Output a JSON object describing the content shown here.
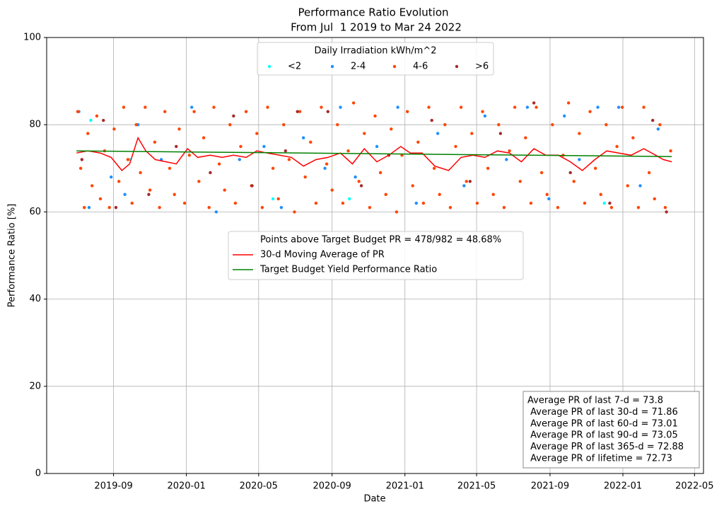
{
  "chart_data": {
    "type": "scatter",
    "title": "Performance Ratio Evolution",
    "subtitle": "From Jul  1 2019 to Mar 24 2022",
    "x_label": "Date",
    "y_label": "Performance Ratio [%]",
    "xlim": [
      "2019-05-12",
      "2022-05-16"
    ],
    "xticks": [
      {
        "value": "2019-09-01",
        "label": "2019-09"
      },
      {
        "value": "2020-01-01",
        "label": "2020-01"
      },
      {
        "value": "2020-05-01",
        "label": "2020-05"
      },
      {
        "value": "2020-09-01",
        "label": "2020-09"
      },
      {
        "value": "2021-01-01",
        "label": "2021-01"
      },
      {
        "value": "2021-05-01",
        "label": "2021-05"
      },
      {
        "value": "2021-09-01",
        "label": "2021-09"
      },
      {
        "value": "2022-01-01",
        "label": "2022-01"
      },
      {
        "value": "2022-05-01",
        "label": "2022-05"
      }
    ],
    "ylim": [
      0,
      100
    ],
    "yticks": [
      0,
      20,
      40,
      60,
      80,
      100
    ],
    "grid": true,
    "legend_title": "Daily Irradiation kWh/m^2",
    "points_note": "Points above Target Budget PR = 478/982 = 48.68%",
    "stats_box": [
      "Average PR of last 7-d = 73.8",
      " Average PR of last 30-d = 71.86",
      " Average PR of last 60-d = 73.01",
      " Average PR of last 90-d = 73.05",
      " Average PR of last 365-d = 72.88",
      " Average PR of lifetime = 72.73"
    ],
    "series": [
      {
        "name": "<2",
        "type": "scatter",
        "color": "#00ffff",
        "x": [
          "2019-07-25",
          "2019-09-28",
          "2020-05-25",
          "2020-09-30",
          "2021-12-01"
        ],
        "values": [
          81,
          72,
          63,
          63,
          62
        ]
      },
      {
        "name": "2-4",
        "type": "scatter",
        "color": "#1e90ff",
        "x": [
          "2019-07-05",
          "2019-07-22",
          "2019-08-28",
          "2019-09-20",
          "2019-10-12",
          "2019-11-20",
          "2020-01-10",
          "2020-02-20",
          "2020-03-30",
          "2020-05-10",
          "2020-06-08",
          "2020-07-15",
          "2020-08-20",
          "2020-09-15",
          "2020-10-10",
          "2020-11-15",
          "2020-12-20",
          "2021-01-20",
          "2021-02-25",
          "2021-04-10",
          "2021-05-15",
          "2021-06-20",
          "2021-07-25",
          "2021-08-30",
          "2021-09-25",
          "2021-10-20",
          "2021-11-20",
          "2021-12-25",
          "2022-01-30",
          "2022-03-01"
        ],
        "values": [
          83,
          61,
          68,
          64,
          80,
          72,
          84,
          60,
          72,
          75,
          61,
          77,
          70,
          84,
          68,
          75,
          84,
          62,
          78,
          66,
          82,
          72,
          84,
          63,
          82,
          72,
          84,
          84,
          66,
          79
        ]
      },
      {
        "name": "4-6",
        "type": "scatter",
        "color": "#ff4500",
        "x": [
          "2019-07-03",
          "2019-07-08",
          "2019-07-14",
          "2019-07-20",
          "2019-07-27",
          "2019-08-04",
          "2019-08-10",
          "2019-08-17",
          "2019-08-25",
          "2019-09-02",
          "2019-09-10",
          "2019-09-18",
          "2019-09-25",
          "2019-10-02",
          "2019-10-09",
          "2019-10-16",
          "2019-10-24",
          "2019-11-01",
          "2019-11-09",
          "2019-11-17",
          "2019-11-26",
          "2019-12-04",
          "2019-12-12",
          "2019-12-20",
          "2019-12-29",
          "2020-01-06",
          "2020-01-14",
          "2020-01-22",
          "2020-01-30",
          "2020-02-08",
          "2020-02-16",
          "2020-02-25",
          "2020-03-05",
          "2020-03-14",
          "2020-03-23",
          "2020-04-01",
          "2020-04-10",
          "2020-04-19",
          "2020-04-28",
          "2020-05-07",
          "2020-05-16",
          "2020-05-25",
          "2020-06-03",
          "2020-06-12",
          "2020-06-21",
          "2020-06-30",
          "2020-07-09",
          "2020-07-18",
          "2020-07-27",
          "2020-08-05",
          "2020-08-14",
          "2020-08-23",
          "2020-09-01",
          "2020-09-10",
          "2020-09-19",
          "2020-09-28",
          "2020-10-07",
          "2020-10-16",
          "2020-10-25",
          "2020-11-03",
          "2020-11-12",
          "2020-11-21",
          "2020-11-30",
          "2020-12-09",
          "2020-12-18",
          "2020-12-27",
          "2021-01-05",
          "2021-01-14",
          "2021-01-23",
          "2021-02-01",
          "2021-02-10",
          "2021-02-19",
          "2021-02-28",
          "2021-03-09",
          "2021-03-18",
          "2021-03-27",
          "2021-04-05",
          "2021-04-14",
          "2021-04-23",
          "2021-05-02",
          "2021-05-11",
          "2021-05-20",
          "2021-05-29",
          "2021-06-07",
          "2021-06-16",
          "2021-06-25",
          "2021-07-04",
          "2021-07-13",
          "2021-07-22",
          "2021-07-31",
          "2021-08-09",
          "2021-08-18",
          "2021-08-27",
          "2021-09-05",
          "2021-09-14",
          "2021-09-23",
          "2021-10-02",
          "2021-10-11",
          "2021-10-20",
          "2021-10-29",
          "2021-11-07",
          "2021-11-16",
          "2021-11-25",
          "2021-12-04",
          "2021-12-13",
          "2021-12-22",
          "2021-12-31",
          "2022-01-09",
          "2022-01-18",
          "2022-01-27",
          "2022-02-05",
          "2022-02-14",
          "2022-02-23",
          "2022-03-04",
          "2022-03-13",
          "2022-03-22"
        ],
        "values": [
          83,
          70,
          61,
          78,
          66,
          82,
          63,
          74,
          61,
          79,
          67,
          84,
          72,
          62,
          80,
          69,
          84,
          65,
          76,
          61,
          83,
          70,
          64,
          79,
          62,
          73,
          83,
          67,
          77,
          61,
          84,
          71,
          65,
          80,
          62,
          75,
          83,
          66,
          78,
          61,
          84,
          70,
          63,
          80,
          72,
          60,
          83,
          68,
          76,
          62,
          84,
          71,
          65,
          80,
          62,
          74,
          85,
          67,
          78,
          61,
          82,
          69,
          64,
          79,
          60,
          73,
          83,
          66,
          76,
          62,
          84,
          70,
          64,
          80,
          61,
          75,
          84,
          67,
          78,
          62,
          83,
          70,
          64,
          80,
          61,
          74,
          84,
          67,
          77,
          62,
          84,
          69,
          64,
          80,
          61,
          73,
          85,
          67,
          78,
          62,
          83,
          70,
          64,
          80,
          61,
          75,
          84,
          66,
          77,
          61,
          84,
          69,
          63,
          80,
          61,
          74
        ]
      },
      {
        "name": ">6",
        "type": "scatter",
        "color": "#a52a2a",
        "x": [
          "2019-07-10",
          "2019-08-15",
          "2019-09-05",
          "2019-10-30",
          "2019-12-15",
          "2020-02-10",
          "2020-03-20",
          "2020-04-20",
          "2020-06-15",
          "2020-07-05",
          "2020-08-25",
          "2020-10-20",
          "2020-12-05",
          "2021-02-15",
          "2021-04-20",
          "2021-06-10",
          "2021-08-05",
          "2021-10-05",
          "2021-12-10",
          "2022-02-20",
          "2022-03-15"
        ],
        "values": [
          72,
          81,
          61,
          64,
          75,
          69,
          82,
          66,
          74,
          83,
          83,
          66,
          73,
          81,
          67,
          78,
          85,
          69,
          62,
          81,
          60
        ]
      },
      {
        "name": "30-d Moving Average of PR",
        "type": "line",
        "color": "#ff0000",
        "x": [
          "2019-07-01",
          "2019-07-20",
          "2019-08-10",
          "2019-08-28",
          "2019-09-15",
          "2019-09-28",
          "2019-10-12",
          "2019-10-25",
          "2019-11-10",
          "2019-11-28",
          "2019-12-15",
          "2020-01-03",
          "2020-01-20",
          "2020-02-10",
          "2020-03-01",
          "2020-03-20",
          "2020-04-10",
          "2020-04-28",
          "2020-05-15",
          "2020-06-05",
          "2020-06-25",
          "2020-07-15",
          "2020-08-05",
          "2020-08-25",
          "2020-09-15",
          "2020-10-05",
          "2020-10-25",
          "2020-11-15",
          "2020-12-05",
          "2020-12-25",
          "2021-01-10",
          "2021-01-30",
          "2021-02-20",
          "2021-03-15",
          "2021-04-05",
          "2021-04-25",
          "2021-05-15",
          "2021-06-05",
          "2021-06-25",
          "2021-07-15",
          "2021-08-05",
          "2021-08-25",
          "2021-09-15",
          "2021-10-05",
          "2021-10-25",
          "2021-11-15",
          "2021-12-05",
          "2021-12-25",
          "2022-01-15",
          "2022-02-05",
          "2022-02-25",
          "2022-03-10",
          "2022-03-24"
        ],
        "values": [
          73.5,
          74,
          73.5,
          72.5,
          69.5,
          71,
          77,
          74,
          72,
          71.5,
          71,
          74.5,
          72.5,
          73,
          72.5,
          73,
          72.5,
          74,
          73.5,
          73,
          72.5,
          70.5,
          72,
          72.5,
          73.5,
          71,
          74.5,
          71.5,
          73,
          75,
          73.5,
          73.5,
          70.5,
          69.5,
          72.5,
          73,
          72.5,
          74,
          73.5,
          71.5,
          74.5,
          73,
          73,
          71.5,
          69.5,
          72,
          74,
          73.5,
          73,
          74.5,
          73,
          72,
          71.5
        ]
      },
      {
        "name": "Target Budget Yield Performance Ratio",
        "type": "line",
        "color": "#008000",
        "x": [
          "2019-07-01",
          "2022-03-24"
        ],
        "values": [
          74.0,
          72.7
        ]
      }
    ]
  }
}
